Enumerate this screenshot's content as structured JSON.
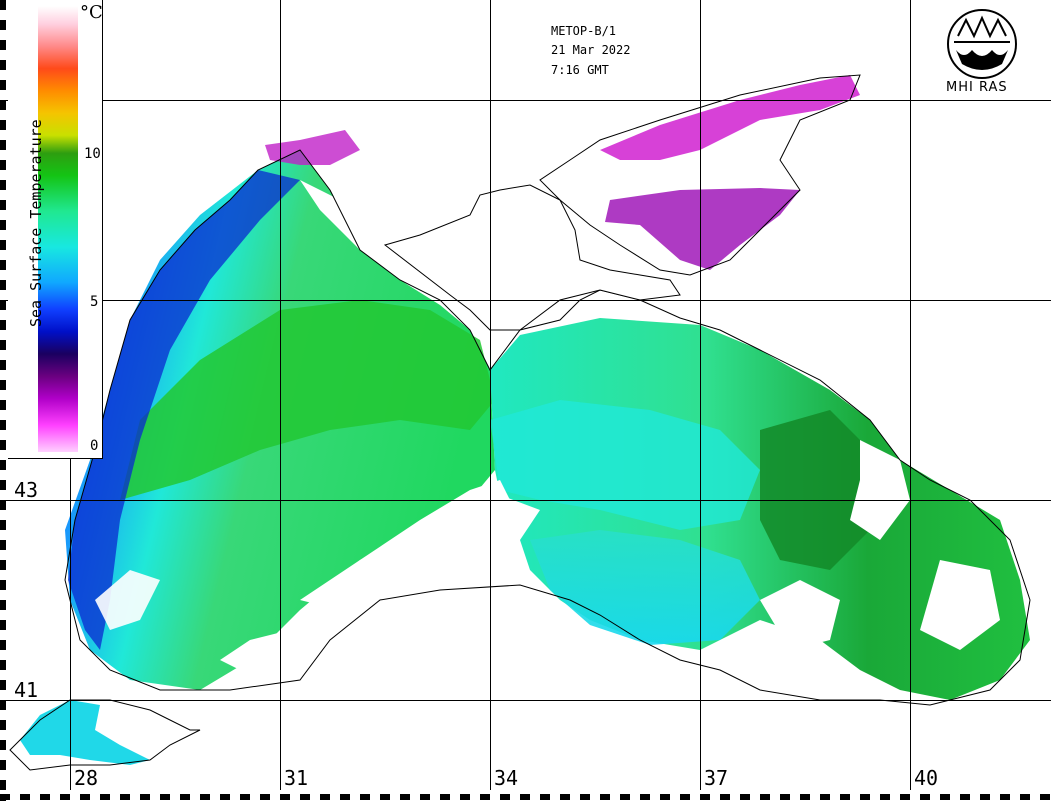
{
  "header": {
    "satellite": "METOP-B/1",
    "date": "21 Mar 2022",
    "time": "7:16 GMT"
  },
  "logo": {
    "name": "mhi-ras-logo",
    "text": "MHI RAS"
  },
  "legend": {
    "title": "Sea Surface Temperature",
    "unit": "°C",
    "ticks": [
      "10",
      "5",
      "0"
    ],
    "range": [
      0,
      14
    ]
  },
  "grid": {
    "longitudes": [
      "28",
      "31",
      "34",
      "37",
      "40"
    ],
    "latitudes": [
      "43",
      "41"
    ]
  },
  "colors": {
    "cloud": "#ffffff",
    "land_outline": "#000000",
    "warm": "#1fa81f",
    "mid": "#20e0e0",
    "cold": "#1030d0",
    "ice_mask": "#d020d0"
  }
}
